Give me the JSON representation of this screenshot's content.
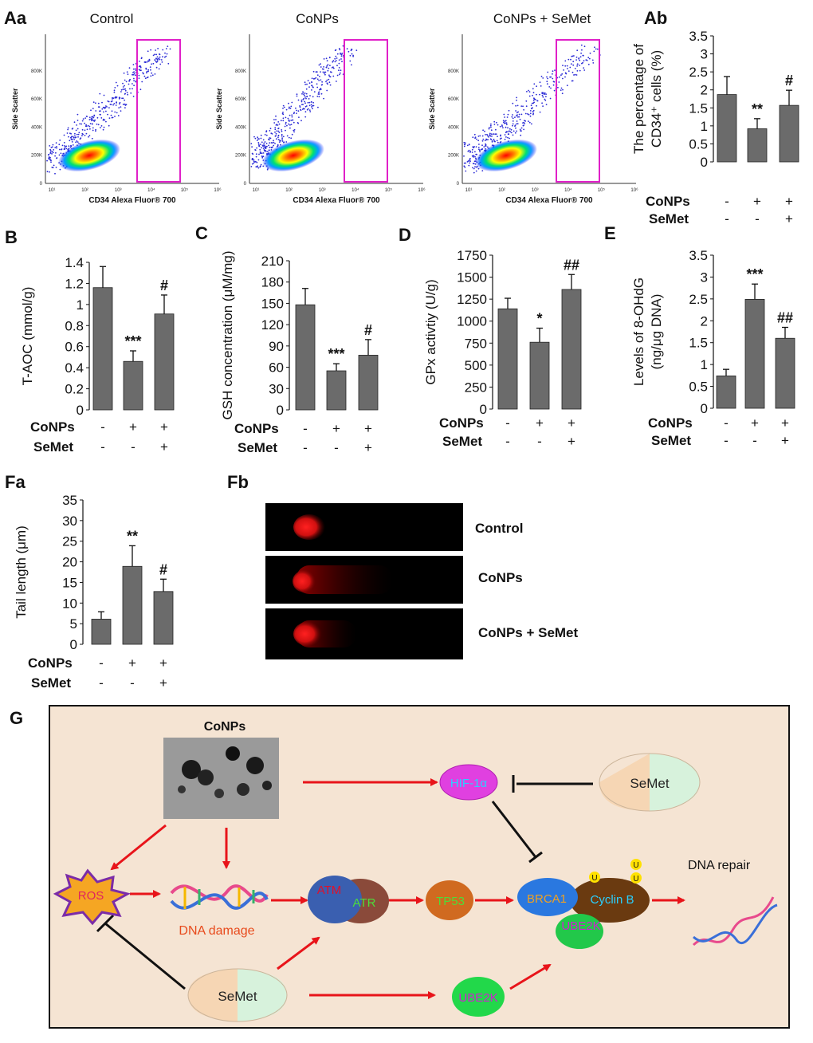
{
  "panels": {
    "Aa": "Aa",
    "Ab": "Ab",
    "B": "B",
    "C": "C",
    "D": "D",
    "E": "E",
    "Fa": "Fa",
    "Fb": "Fb",
    "G": "G"
  },
  "flow": {
    "titles": [
      "Control",
      "CoNPs",
      "CoNPs + SeMet"
    ],
    "xlabel": "CD34 Alexa Fluor® 700",
    "ylabel": "Side Scatter",
    "y_ticks": [
      "0",
      "200K",
      "400K",
      "600K",
      "800K"
    ],
    "x_ticks": [
      "10¹",
      "10²",
      "10³",
      "10⁴",
      "10⁵",
      "10⁶"
    ]
  },
  "treatment": {
    "conps_label": "CoNPs",
    "semet_label": "SeMet",
    "conps_signs": [
      "-",
      "+",
      "+"
    ],
    "semet_signs": [
      "-",
      "-",
      "+"
    ]
  },
  "chart_data": [
    {
      "id": "Ab",
      "type": "bar",
      "categories": [
        "Control",
        "CoNPs",
        "CoNPs + SeMet"
      ],
      "ylabel_line1": "The percentage of",
      "ylabel_line2": "CD34⁺ cells (%)",
      "values": [
        1.87,
        0.92,
        1.57
      ],
      "errors": [
        0.5,
        0.28,
        0.42
      ],
      "sig": [
        "",
        "**",
        "#"
      ],
      "ylim": [
        0,
        3.5
      ],
      "ticks": [
        "0",
        "0.5",
        "1",
        "1.5",
        "2",
        "2.5",
        "3",
        "3.5"
      ]
    },
    {
      "id": "B",
      "type": "bar",
      "categories": [
        "Control",
        "CoNPs",
        "CoNPs + SeMet"
      ],
      "ylabel": "T-AOC (mmol/g)",
      "values": [
        1.16,
        0.46,
        0.91
      ],
      "errors": [
        0.2,
        0.1,
        0.18
      ],
      "sig": [
        "",
        "***",
        "#"
      ],
      "ylim": [
        0,
        1.4
      ],
      "ticks": [
        "0",
        "0.2",
        "0.4",
        "0.6",
        "0.8",
        "1",
        "1.2",
        "1.4"
      ]
    },
    {
      "id": "C",
      "type": "bar",
      "categories": [
        "Control",
        "CoNPs",
        "CoNPs + SeMet"
      ],
      "ylabel": "GSH concentration (μM/mg)",
      "values": [
        148,
        55,
        77
      ],
      "errors": [
        23,
        10,
        22
      ],
      "sig": [
        "",
        "***",
        "#"
      ],
      "ylim": [
        0,
        210
      ],
      "ticks": [
        "0",
        "30",
        "60",
        "90",
        "120",
        "150",
        "180",
        "210"
      ]
    },
    {
      "id": "D",
      "type": "bar",
      "categories": [
        "Control",
        "CoNPs",
        "CoNPs + SeMet"
      ],
      "ylabel": "GPx activtiy (U/g)",
      "values": [
        1140,
        760,
        1360
      ],
      "errors": [
        120,
        160,
        170
      ],
      "sig": [
        "",
        "*",
        "##"
      ],
      "ylim": [
        0,
        1750
      ],
      "ticks": [
        "0",
        "250",
        "500",
        "750",
        "1000",
        "1250",
        "1500",
        "1750"
      ]
    },
    {
      "id": "E",
      "type": "bar",
      "categories": [
        "Control",
        "CoNPs",
        "CoNPs + SeMet"
      ],
      "ylabel_line1": "Levels of 8-OHdG",
      "ylabel_line2": "(ng/μg DNA)",
      "values": [
        0.74,
        2.49,
        1.6
      ],
      "errors": [
        0.15,
        0.35,
        0.25
      ],
      "sig": [
        "",
        "***",
        "##"
      ],
      "ylim": [
        0,
        3.5
      ],
      "ticks": [
        "0",
        "0.5",
        "1",
        "1.5",
        "2",
        "2.5",
        "3",
        "3.5"
      ]
    },
    {
      "id": "Fa",
      "type": "bar",
      "categories": [
        "Control",
        "CoNPs",
        "CoNPs + SeMet"
      ],
      "ylabel": "Tail length (μm)",
      "values": [
        6.1,
        18.9,
        12.8
      ],
      "errors": [
        1.8,
        5.0,
        3.0
      ],
      "sig": [
        "",
        "**",
        "#"
      ],
      "ylim": [
        0,
        35
      ],
      "ticks": [
        "0",
        "5",
        "10",
        "15",
        "20",
        "25",
        "30",
        "35"
      ]
    }
  ],
  "comet": {
    "labels": [
      "Control",
      "CoNPs",
      "CoNPs + SeMet"
    ]
  },
  "pathway": {
    "conps": "CoNPs",
    "hif": "HIF-1α",
    "semet": "SeMet",
    "ros": "ROS",
    "dna_damage": "DNA damage",
    "atm": "ATM",
    "atr": "ATR",
    "tp53": "TP53",
    "brca1": "BRCA1",
    "cyclin_b": "Cyclin B",
    "ube2k": "UBE2K",
    "u": "U",
    "dna_repair": "DNA repair"
  }
}
